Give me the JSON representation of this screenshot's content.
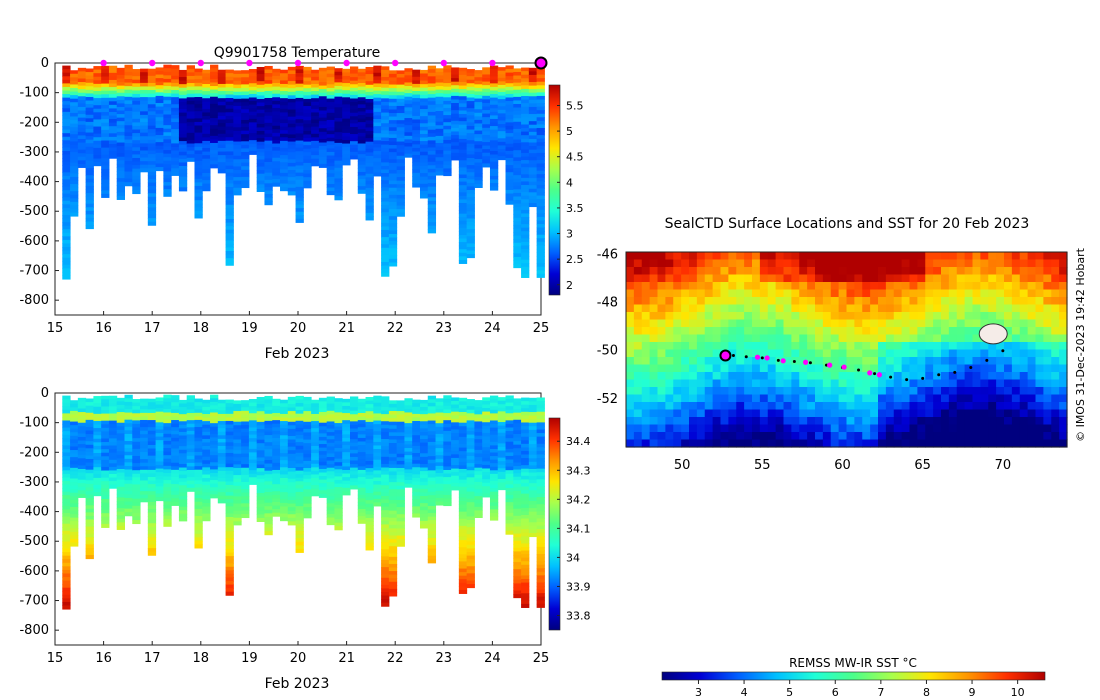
{
  "chart_data": [
    {
      "type": "heatmap",
      "id": "temperature",
      "title": "Q9901758  Temperature",
      "xlabel": "Feb 2023",
      "ylabel": "",
      "xlim": [
        15,
        25
      ],
      "ylim": [
        -850,
        0
      ],
      "xticks": [
        "15",
        "16",
        "17",
        "18",
        "19",
        "20",
        "21",
        "22",
        "23",
        "24",
        "25"
      ],
      "yticks": [
        "0",
        "-100",
        "-200",
        "-300",
        "-400",
        "-500",
        "-600",
        "-700",
        "-800"
      ],
      "colorbar": {
        "range": [
          1.8,
          5.9
        ],
        "ticks": [
          "2",
          "2.5",
          "3",
          "3.5",
          "4",
          "4.5",
          "5",
          "5.5"
        ],
        "colormap": [
          "#00007f",
          "#0000d4",
          "#0060ff",
          "#00c0ff",
          "#20ffd6",
          "#4cff8a",
          "#a8ff4c",
          "#ffe500",
          "#ff9400",
          "#ff3000",
          "#b00000"
        ]
      },
      "surface_markers_x": [
        16,
        17,
        18,
        19,
        20,
        21,
        22,
        23,
        24
      ],
      "current_marker_x": 25,
      "marker_color": "#ff00ff"
    },
    {
      "type": "heatmap",
      "id": "salinity",
      "title": "",
      "xlabel": "Feb 2023",
      "ylabel": "",
      "xlim": [
        15,
        25
      ],
      "ylim": [
        -850,
        0
      ],
      "xticks": [
        "15",
        "16",
        "17",
        "18",
        "19",
        "20",
        "21",
        "22",
        "23",
        "24",
        "25"
      ],
      "yticks": [
        "0",
        "-100",
        "-200",
        "-300",
        "-400",
        "-500",
        "-600",
        "-700",
        "-800"
      ],
      "colorbar": {
        "range": [
          33.75,
          34.48
        ],
        "ticks": [
          "33.8",
          "33.9",
          "34",
          "34.1",
          "34.2",
          "34.3",
          "34.4"
        ],
        "colormap": [
          "#00007f",
          "#0000d4",
          "#0060ff",
          "#00c0ff",
          "#20ffd6",
          "#4cff8a",
          "#a8ff4c",
          "#ffe500",
          "#ff9400",
          "#ff3000",
          "#b00000"
        ]
      }
    },
    {
      "type": "map",
      "id": "sst-map",
      "title": "SealCTD Surface Locations and SST for 20 Feb 2023",
      "xlim": [
        46.5,
        74
      ],
      "ylim": [
        -54,
        -45.9
      ],
      "xticks": [
        "50",
        "55",
        "60",
        "65",
        "70"
      ],
      "yticks": [
        "-46",
        "-48",
        "-50",
        "-52"
      ],
      "colorbar": {
        "label": "REMSS MW-IR SST °C",
        "range": [
          2.2,
          10.6
        ],
        "ticks": [
          "3",
          "4",
          "5",
          "6",
          "7",
          "8",
          "9",
          "10"
        ]
      },
      "track": [
        [
          53.2,
          -50.2
        ],
        [
          54.0,
          -50.25
        ],
        [
          55.0,
          -50.3
        ],
        [
          56.0,
          -50.4
        ],
        [
          57.0,
          -50.45
        ],
        [
          58.0,
          -50.5
        ],
        [
          59.0,
          -50.6
        ],
        [
          60.0,
          -50.7
        ],
        [
          61.0,
          -50.8
        ],
        [
          62.0,
          -50.95
        ],
        [
          63.0,
          -51.1
        ],
        [
          64.0,
          -51.2
        ],
        [
          65.0,
          -51.15
        ],
        [
          66.0,
          -51.0
        ],
        [
          67.0,
          -50.9
        ],
        [
          68.0,
          -50.7
        ],
        [
          69.0,
          -50.4
        ],
        [
          70.0,
          -50.0
        ]
      ],
      "daily_positions": [
        [
          54.7,
          -50.27
        ],
        [
          55.3,
          -50.3
        ],
        [
          56.3,
          -50.42
        ],
        [
          57.7,
          -50.48
        ],
        [
          59.2,
          -50.6
        ],
        [
          60.1,
          -50.68
        ],
        [
          61.7,
          -50.92
        ],
        [
          62.3,
          -51.0
        ]
      ],
      "current_position": [
        52.7,
        -50.2
      ],
      "credit": "© IMOS 31-Dec-2023 19:42 Hobart"
    }
  ]
}
